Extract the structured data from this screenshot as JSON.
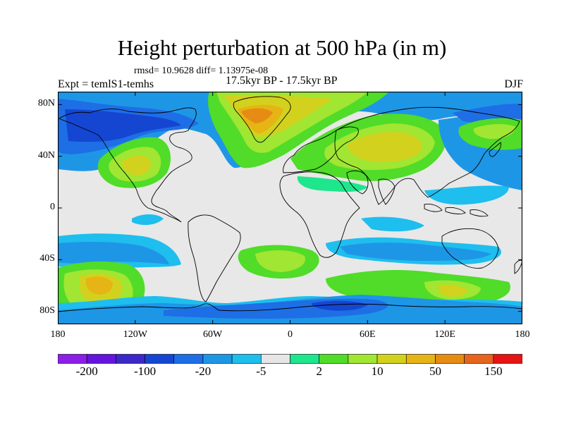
{
  "title": "Height perturbation at 500 hPa (in m)",
  "stats": "rmsd= 10.9628 diff= 1.13975e-08",
  "period": "17.5kyr BP - 17.5kyr BP",
  "experiment": "Expt = temlS1-temhs",
  "season": "DJF",
  "map": {
    "projection": "cylindrical-equidistant",
    "lon_range": [
      -180,
      180
    ],
    "lat_range": [
      -90,
      90
    ],
    "y_ticks": [
      {
        "value": 80,
        "label": "80N"
      },
      {
        "value": 40,
        "label": "40N"
      },
      {
        "value": 0,
        "label": "0"
      },
      {
        "value": -40,
        "label": "40S"
      },
      {
        "value": -80,
        "label": "80S"
      }
    ],
    "x_ticks": [
      {
        "value": -180,
        "label": "180"
      },
      {
        "value": -120,
        "label": "120W"
      },
      {
        "value": -60,
        "label": "60W"
      },
      {
        "value": 0,
        "label": "0"
      },
      {
        "value": 60,
        "label": "60E"
      },
      {
        "value": 120,
        "label": "120E"
      },
      {
        "value": 180,
        "label": "180"
      }
    ],
    "background_color": "#e8e8e8"
  },
  "legend": {
    "colors": [
      "#8c1ee6",
      "#6414dc",
      "#3c28c8",
      "#1446d2",
      "#1e6ee6",
      "#1e96e6",
      "#1ebeee",
      "#e6e6e6",
      "#1ee68c",
      "#50dc28",
      "#a0e632",
      "#d2d21e",
      "#e6b414",
      "#e68c14",
      "#e6641e",
      "#e61414"
    ],
    "labels": [
      {
        "boundary": 1,
        "text": "-200"
      },
      {
        "boundary": 3,
        "text": "-100"
      },
      {
        "boundary": 5,
        "text": "-20"
      },
      {
        "boundary": 7,
        "text": "-5"
      },
      {
        "boundary": 9,
        "text": "2"
      },
      {
        "boundary": 11,
        "text": "10"
      },
      {
        "boundary": 13,
        "text": "50"
      },
      {
        "boundary": 15,
        "text": "150"
      }
    ]
  }
}
